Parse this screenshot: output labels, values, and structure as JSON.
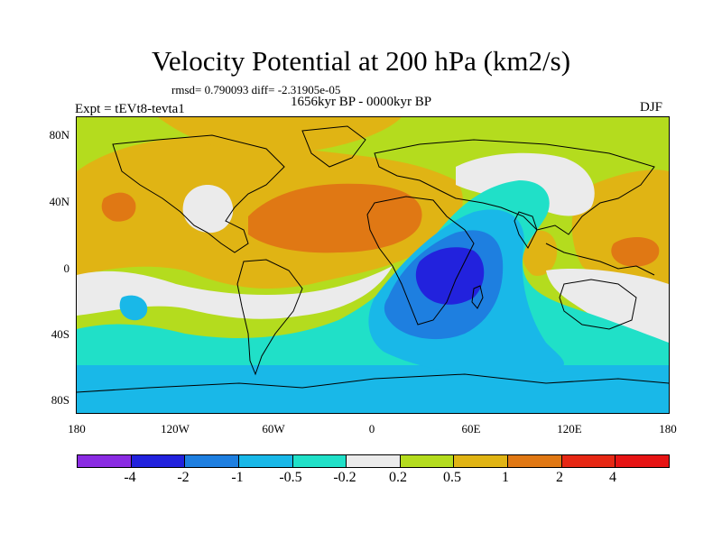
{
  "title": "Velocity Potential at 200 hPa (km2/s)",
  "stats": "rmsd= 0.790093 diff= -2.31905e-05",
  "period": "1656kyr BP - 0000kyr BP",
  "experiment": "Expt = tEVt8-tevta1",
  "season": "DJF",
  "lat_labels": [
    "80N",
    "40N",
    "0",
    "40S",
    "80S"
  ],
  "lon_labels": [
    "180",
    "120W",
    "60W",
    "0",
    "60E",
    "120E",
    "180"
  ],
  "colorbar_levels": [
    "-4",
    "-2",
    "-1",
    "-0.5",
    "-0.2",
    "0.2",
    "0.5",
    "1",
    "2",
    "4"
  ],
  "colorbar_colors": [
    "#8a2be2",
    "#2222dd",
    "#1e7fe0",
    "#19b8e8",
    "#20e0c8",
    "#ebebeb",
    "#b4dc1e",
    "#e0b414",
    "#e07814",
    "#e62814",
    "#e61414"
  ],
  "colors": {
    "land_outline": "#000000",
    "background": "#ffffff"
  }
}
